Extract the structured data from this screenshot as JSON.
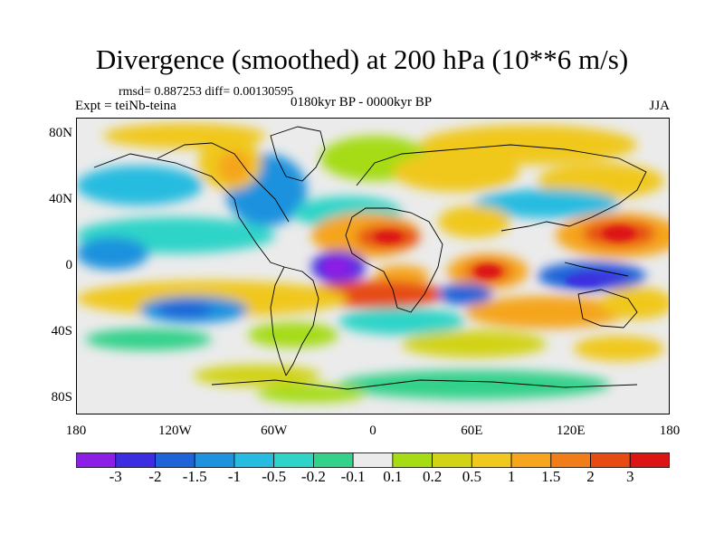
{
  "title": "Divergence (smoothed) at 200 hPa (10**6 m/s)",
  "stats": "rmsd= 0.887253 diff= 0.00130595",
  "experiment": "Expt = teiNb-teina",
  "period": "0180kyr BP - 0000kyr BP",
  "season": "JJA",
  "y_axis": {
    "labels": [
      "80N",
      "40N",
      "0",
      "40S",
      "80S"
    ]
  },
  "x_axis": {
    "labels": [
      "180",
      "120W",
      "60W",
      "0",
      "60E",
      "120E",
      "180"
    ]
  },
  "colorbar": {
    "colors": [
      "#8c1ee6",
      "#3c2ee0",
      "#1f63d8",
      "#1e92de",
      "#25bce0",
      "#2ed4c8",
      "#33d18a",
      "#ebebeb",
      "#a5dc14",
      "#d2d314",
      "#f0c81e",
      "#f5a51e",
      "#f07d19",
      "#e64b14",
      "#dc1414"
    ],
    "labels": [
      "-3",
      "-2",
      "-1.5",
      "-1",
      "-0.5",
      "-0.2",
      "-0.1",
      "0.1",
      "0.2",
      "0.5",
      "1",
      "1.5",
      "2",
      "3"
    ]
  },
  "field_colors": {
    "background": "#ebebeb",
    "coastline": "#000000"
  }
}
